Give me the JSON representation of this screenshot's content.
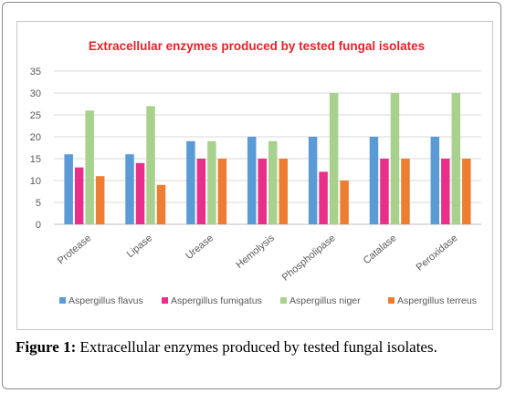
{
  "chart_data": {
    "type": "bar",
    "title": "Extracellular enzymes produced by tested fungal isolates",
    "categories": [
      "Protease",
      "Lipase",
      "Urease",
      "Hemolysis",
      "Phospholipase",
      "Catalase",
      "Peroxidase"
    ],
    "series": [
      {
        "name": "Aspergillus flavus",
        "color": "#5b9bd5",
        "values": [
          16,
          16,
          19,
          20,
          20,
          20,
          20
        ]
      },
      {
        "name": "Aspergillus fumigatus",
        "color": "#e8308a",
        "values": [
          13,
          14,
          15,
          15,
          12,
          15,
          15
        ]
      },
      {
        "name": "Aspergillus niger",
        "color": "#a9d18e",
        "values": [
          26,
          27,
          19,
          19,
          30,
          30,
          30
        ]
      },
      {
        "name": "Aspergillus terreus",
        "color": "#ed7d31",
        "values": [
          11,
          9,
          15,
          15,
          10,
          15,
          15
        ]
      }
    ],
    "y_ticks": [
      0,
      5,
      10,
      15,
      20,
      25,
      30,
      35
    ],
    "ylim": [
      0,
      35
    ],
    "grid": true,
    "legend": "bottom",
    "title_color": "#e8202a"
  },
  "caption": {
    "label": "Figure 1:",
    "text": " Extracellular enzymes produced by tested fungal isolates."
  }
}
